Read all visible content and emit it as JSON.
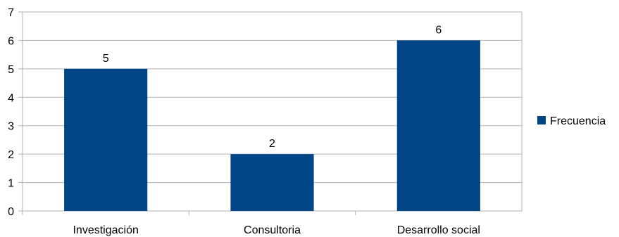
{
  "chart_data": {
    "type": "bar",
    "categories": [
      "Investigación",
      "Consultoria",
      "Desarrollo social"
    ],
    "series": [
      {
        "name": "Frecuencia",
        "values": [
          5,
          2,
          6
        ],
        "color": "#004586"
      }
    ],
    "ylim": [
      0,
      7
    ],
    "yticks": [
      "0",
      "1",
      "2",
      "3",
      "4",
      "5",
      "6",
      "7"
    ],
    "grid": true,
    "legend": "right",
    "data_labels": [
      "5",
      "2",
      "6"
    ]
  }
}
